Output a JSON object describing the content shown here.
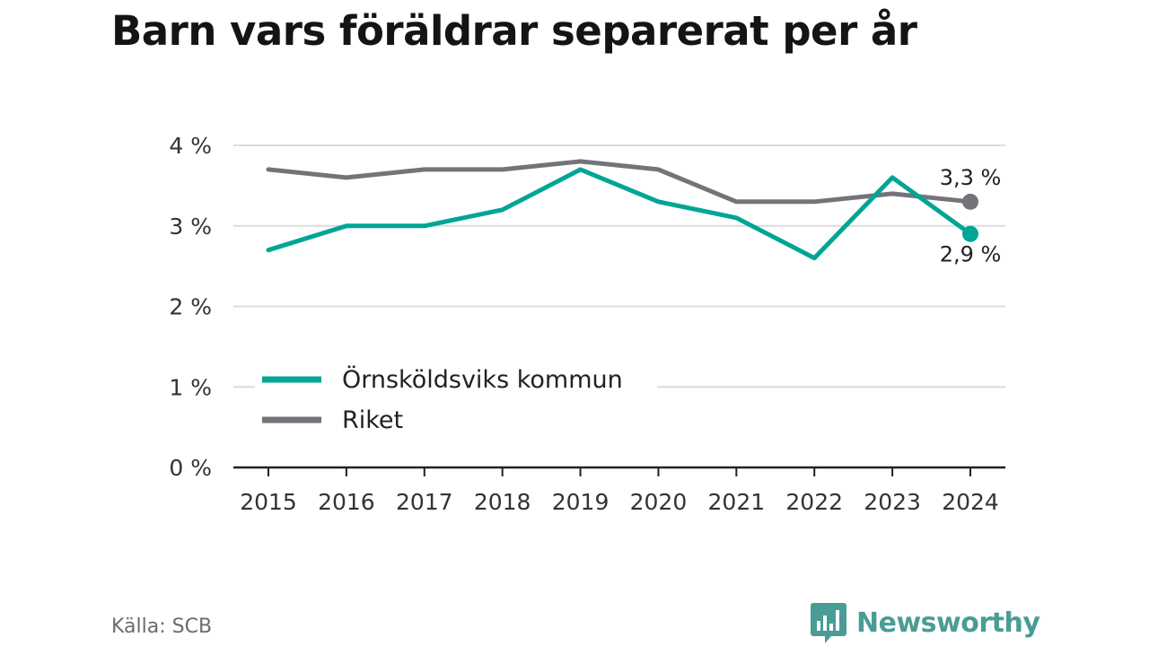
{
  "title": "Barn vars föräldrar separerat per år",
  "source": "Källa: SCB",
  "brand": {
    "name": "Newsworthy",
    "icon": "newsworthy-logo-icon",
    "color": "#4a9c96"
  },
  "chart_data": {
    "type": "line",
    "title": "Barn vars föräldrar separerat per år",
    "x": [
      "2015",
      "2016",
      "2017",
      "2018",
      "2019",
      "2020",
      "2021",
      "2022",
      "2023",
      "2024"
    ],
    "ylim": [
      0,
      4
    ],
    "yticks": [
      {
        "value": 0,
        "label": "0 %"
      },
      {
        "value": 1,
        "label": "1 %"
      },
      {
        "value": 2,
        "label": "2 %"
      },
      {
        "value": 3,
        "label": "3 %"
      },
      {
        "value": 4,
        "label": "4 %"
      }
    ],
    "grid": true,
    "legend_position": "bottom-left",
    "series": [
      {
        "name": "Örnsköldsviks kommun",
        "color": "#00a595",
        "values": [
          2.7,
          3.0,
          3.0,
          3.2,
          3.7,
          3.3,
          3.1,
          2.6,
          3.6,
          2.9
        ],
        "end_label": "2,9 %"
      },
      {
        "name": "Riket",
        "color": "#747379",
        "values": [
          3.7,
          3.6,
          3.7,
          3.7,
          3.8,
          3.7,
          3.3,
          3.3,
          3.4,
          3.3
        ],
        "end_label": "3,3 %"
      }
    ]
  }
}
